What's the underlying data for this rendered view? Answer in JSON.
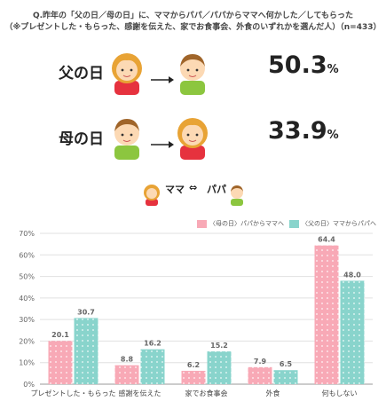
{
  "question": {
    "line1": "Q.昨年の「父の日／母の日」に、ママからパパ／パパからママへ何かした／してもらった",
    "line2": "（※プレゼントした・もらった、感謝を伝えた、家でお食事会、外食のいずれかを選んだ人）（n=433）"
  },
  "summary": [
    {
      "label": "父の日",
      "value": "50.3",
      "unit": "%"
    },
    {
      "label": "母の日",
      "value": "33.9",
      "unit": "%"
    }
  ],
  "pair_legend": {
    "mama": "ママ",
    "arrow": "⇔",
    "papa": "パパ"
  },
  "colors": {
    "pink": "#f8a9b6",
    "teal": "#89d4cc",
    "pink_face": "#e6323e",
    "teal_face": "#8cc63f"
  },
  "chart_data": {
    "type": "bar",
    "categories": [
      "プレゼントした・もらった",
      "感謝を伝えた",
      "家でお食事会",
      "外食",
      "何もしない"
    ],
    "series": [
      {
        "name": "〈母の日〉パパからママへ",
        "values": [
          20.1,
          8.8,
          6.2,
          7.9,
          64.4
        ],
        "color": "#f8a9b6"
      },
      {
        "name": "〈父の日〉ママからパパへ",
        "values": [
          30.7,
          16.2,
          15.2,
          6.5,
          48.0
        ],
        "color": "#89d4cc"
      }
    ],
    "value_labels": [
      [
        "20.1",
        "8.8",
        "6.2",
        "7.9",
        "64.4"
      ],
      [
        "30.7",
        "16.2",
        "15.2",
        "6.5",
        "48.0"
      ]
    ],
    "yticks": [
      "0%",
      "10%",
      "20%",
      "30%",
      "40%",
      "50%",
      "60%",
      "70%"
    ],
    "ylim": [
      0,
      70
    ],
    "grid": true,
    "legend": "top-right"
  }
}
